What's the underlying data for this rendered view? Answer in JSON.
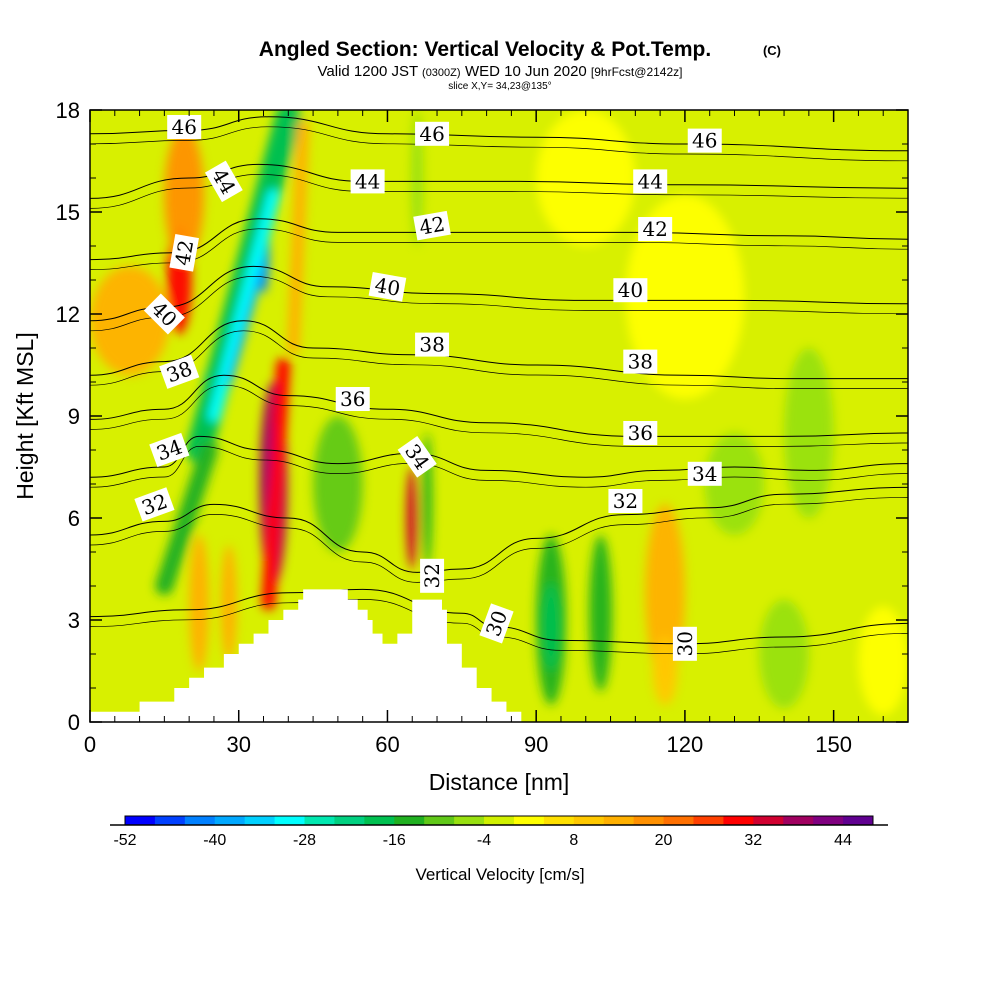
{
  "chart_data": {
    "type": "heatmap",
    "title": "Angled Section: Vertical Velocity & Pot.Temp.",
    "title_mark": "(C)",
    "subtitle_parts": [
      "Valid 1200 JST ",
      "(0300Z)",
      " WED 10 Jun 2020 ",
      "[9hrFcst@2142z]"
    ],
    "subtitle2": "slice X,Y= 34,23@135°",
    "xlabel": "Distance [nm]",
    "ylabel": "Height [Kft MSL]",
    "xlim": [
      0,
      165
    ],
    "ylim": [
      0,
      18
    ],
    "x_ticks": [
      0,
      30,
      60,
      90,
      120,
      150
    ],
    "y_ticks": [
      0,
      3,
      6,
      9,
      12,
      15,
      18
    ],
    "colorbar": {
      "title": "Vertical Velocity [cm/s]",
      "tick_values": [
        "-52",
        "-40",
        "-28",
        "-16",
        "-4",
        "8",
        "20",
        "32",
        "44"
      ],
      "colors": [
        "#0000ff",
        "#0040ff",
        "#0080ff",
        "#00a8ff",
        "#00d0ff",
        "#00ffff",
        "#00e8b0",
        "#00d080",
        "#00c050",
        "#20b020",
        "#60c818",
        "#98e010",
        "#d0f000",
        "#ffff00",
        "#ffe000",
        "#ffc800",
        "#ffb000",
        "#ff9000",
        "#ff7000",
        "#ff4000",
        "#ff0000",
        "#d00030",
        "#a00060",
        "#800080",
        "#600090"
      ]
    },
    "terrain_profile": [
      [
        0,
        0.3
      ],
      [
        10,
        0.3
      ],
      [
        10,
        0.6
      ],
      [
        17,
        0.6
      ],
      [
        17,
        1.0
      ],
      [
        20,
        1.0
      ],
      [
        20,
        1.3
      ],
      [
        23,
        1.3
      ],
      [
        23,
        1.6
      ],
      [
        27,
        1.6
      ],
      [
        27,
        2.0
      ],
      [
        30,
        2.0
      ],
      [
        30,
        2.3
      ],
      [
        33,
        2.3
      ],
      [
        33,
        2.6
      ],
      [
        36,
        2.6
      ],
      [
        36,
        3.0
      ],
      [
        39,
        3.0
      ],
      [
        39,
        3.3
      ],
      [
        42,
        3.3
      ],
      [
        42,
        3.6
      ],
      [
        43,
        3.6
      ],
      [
        43,
        3.9
      ],
      [
        52,
        3.9
      ],
      [
        52,
        3.6
      ],
      [
        54,
        3.6
      ],
      [
        54,
        3.3
      ],
      [
        56,
        3.3
      ],
      [
        56,
        3.0
      ],
      [
        57,
        3.0
      ],
      [
        57,
        2.6
      ],
      [
        59,
        2.6
      ],
      [
        59,
        2.3
      ],
      [
        62,
        2.3
      ],
      [
        62,
        2.6
      ],
      [
        65,
        2.6
      ],
      [
        65,
        3.6
      ],
      [
        71,
        3.6
      ],
      [
        71,
        3.3
      ],
      [
        72,
        3.3
      ],
      [
        72,
        2.3
      ],
      [
        75,
        2.3
      ],
      [
        75,
        1.6
      ],
      [
        78,
        1.6
      ],
      [
        78,
        1.0
      ],
      [
        81,
        1.0
      ],
      [
        81,
        0.6
      ],
      [
        84,
        0.6
      ],
      [
        84,
        0.3
      ],
      [
        87,
        0.3
      ],
      [
        87,
        0
      ],
      [
        0,
        0
      ]
    ],
    "vv_features": [
      {
        "x": 18,
        "y": 13.0,
        "rx": 2.5,
        "ry": 1.6,
        "value": 30
      },
      {
        "x": 19,
        "y": 15.5,
        "rx": 4,
        "ry": 2.0,
        "value": 16
      },
      {
        "x": 8,
        "y": 11.8,
        "rx": 8,
        "ry": 1.6,
        "value": 14
      },
      {
        "x": 35,
        "y": 13.8,
        "rx": 1.2,
        "ry": 1.2,
        "value": -44
      },
      {
        "x": 24,
        "y": 9.5,
        "rx": 1.3,
        "ry": 0.9,
        "value": -30
      },
      {
        "x": 37,
        "y": 7.0,
        "rx": 2.8,
        "ry": 3.0,
        "value": 36
      },
      {
        "x": 37,
        "y": 6.5,
        "rx": 1.3,
        "ry": 2.3,
        "value": 48
      },
      {
        "x": 22,
        "y": 3.5,
        "rx": 2.0,
        "ry": 2.0,
        "value": 14
      },
      {
        "x": 28,
        "y": 3.5,
        "rx": 1.6,
        "ry": 1.7,
        "value": 12
      },
      {
        "x": 65,
        "y": 6.0,
        "rx": 1.2,
        "ry": 1.5,
        "value": 32
      },
      {
        "x": 68,
        "y": 6.5,
        "rx": 1.0,
        "ry": 2.0,
        "value": -16
      },
      {
        "x": 50,
        "y": 7.0,
        "rx": 5.0,
        "ry": 2.0,
        "value": -10
      },
      {
        "x": 93,
        "y": 3.0,
        "rx": 3.0,
        "ry": 2.5,
        "value": -16
      },
      {
        "x": 93,
        "y": 2.8,
        "rx": 1.8,
        "ry": 1.3,
        "value": -20
      },
      {
        "x": 103,
        "y": 3.2,
        "rx": 2.3,
        "ry": 2.3,
        "value": -14
      },
      {
        "x": 116,
        "y": 3.8,
        "rx": 4.0,
        "ry": 2.6,
        "value": 14
      },
      {
        "x": 116,
        "y": 1.5,
        "rx": 2.5,
        "ry": 1.0,
        "value": 10
      },
      {
        "x": 130,
        "y": 7.0,
        "rx": 6.0,
        "ry": 1.5,
        "value": -6
      },
      {
        "x": 145,
        "y": 8.5,
        "rx": 5.0,
        "ry": 2.5,
        "value": -6
      },
      {
        "x": 140,
        "y": 2.0,
        "rx": 5.0,
        "ry": 1.6,
        "value": -8
      },
      {
        "x": 160,
        "y": 1.8,
        "rx": 5.0,
        "ry": 1.6,
        "value": 2
      },
      {
        "x": 120,
        "y": 12.5,
        "rx": 12,
        "ry": 3.0,
        "value": 3
      },
      {
        "x": 100,
        "y": 16.0,
        "rx": 10,
        "ry": 2.0,
        "value": 3
      },
      {
        "x": 66,
        "y": 16.0,
        "rx": 1.2,
        "ry": 2.0,
        "value": -8
      }
    ],
    "potential_temperature_isolines": [
      {
        "value": 30,
        "points": [
          [
            0,
            3.1
          ],
          [
            20,
            3.3
          ],
          [
            40,
            3.8
          ],
          [
            55,
            3.9
          ],
          [
            75,
            3.2
          ],
          [
            82,
            2.8
          ],
          [
            95,
            2.4
          ],
          [
            120,
            2.3
          ],
          [
            140,
            2.5
          ],
          [
            165,
            2.9
          ]
        ]
      },
      {
        "value": 32,
        "points": [
          [
            0,
            5.5
          ],
          [
            15,
            5.9
          ],
          [
            25,
            6.4
          ],
          [
            40,
            6.0
          ],
          [
            55,
            5.0
          ],
          [
            66,
            4.4
          ],
          [
            75,
            4.5
          ],
          [
            90,
            5.4
          ],
          [
            108,
            6.1
          ],
          [
            125,
            6.3
          ],
          [
            140,
            6.7
          ],
          [
            165,
            6.9
          ]
        ]
      },
      {
        "value": 34,
        "points": [
          [
            0,
            7.2
          ],
          [
            15,
            7.5
          ],
          [
            22,
            8.4
          ],
          [
            35,
            8.0
          ],
          [
            50,
            7.6
          ],
          [
            65,
            7.9
          ],
          [
            80,
            7.4
          ],
          [
            100,
            7.2
          ],
          [
            115,
            7.4
          ],
          [
            130,
            7.5
          ],
          [
            145,
            7.4
          ],
          [
            165,
            7.6
          ]
        ]
      },
      {
        "value": 36,
        "points": [
          [
            0,
            8.9
          ],
          [
            15,
            9.2
          ],
          [
            27,
            10.2
          ],
          [
            40,
            9.6
          ],
          [
            60,
            9.2
          ],
          [
            80,
            8.8
          ],
          [
            110,
            8.4
          ],
          [
            140,
            8.4
          ],
          [
            165,
            8.5
          ]
        ]
      },
      {
        "value": 38,
        "points": [
          [
            0,
            10.2
          ],
          [
            15,
            10.6
          ],
          [
            31,
            11.8
          ],
          [
            45,
            11.0
          ],
          [
            65,
            10.8
          ],
          [
            90,
            10.5
          ],
          [
            120,
            10.2
          ],
          [
            140,
            10.1
          ],
          [
            165,
            10.1
          ]
        ]
      },
      {
        "value": 40,
        "points": [
          [
            0,
            11.8
          ],
          [
            15,
            12.2
          ],
          [
            33,
            13.4
          ],
          [
            48,
            12.8
          ],
          [
            70,
            12.6
          ],
          [
            100,
            12.4
          ],
          [
            130,
            12.4
          ],
          [
            165,
            12.3
          ]
        ]
      },
      {
        "value": 42,
        "points": [
          [
            0,
            13.6
          ],
          [
            17,
            13.8
          ],
          [
            34,
            14.8
          ],
          [
            50,
            14.4
          ],
          [
            75,
            14.4
          ],
          [
            110,
            14.4
          ],
          [
            140,
            14.3
          ],
          [
            165,
            14.2
          ]
        ]
      },
      {
        "value": 44,
        "points": [
          [
            0,
            15.4
          ],
          [
            20,
            16.0
          ],
          [
            34,
            16.4
          ],
          [
            55,
            15.9
          ],
          [
            85,
            15.9
          ],
          [
            120,
            15.8
          ],
          [
            165,
            15.7
          ]
        ]
      },
      {
        "value": 46,
        "points": [
          [
            0,
            17.3
          ],
          [
            20,
            17.4
          ],
          [
            36,
            17.8
          ],
          [
            60,
            17.3
          ],
          [
            90,
            17.2
          ],
          [
            120,
            17.0
          ],
          [
            165,
            16.8
          ]
        ]
      }
    ],
    "potential_temperature_labels": [
      {
        "text": "46",
        "x": 19,
        "y": 17.5,
        "angle": 0
      },
      {
        "text": "44",
        "x": 27,
        "y": 15.9,
        "angle": 60
      },
      {
        "text": "42",
        "x": 19,
        "y": 13.8,
        "angle": -80
      },
      {
        "text": "40",
        "x": 15,
        "y": 12.0,
        "angle": 45
      },
      {
        "text": "38",
        "x": 18,
        "y": 10.3,
        "angle": -20
      },
      {
        "text": "34",
        "x": 16,
        "y": 8.0,
        "angle": -20
      },
      {
        "text": "32",
        "x": 13,
        "y": 6.4,
        "angle": -20
      },
      {
        "text": "44",
        "x": 56,
        "y": 15.9,
        "angle": 0
      },
      {
        "text": "46",
        "x": 69,
        "y": 17.3,
        "angle": 0
      },
      {
        "text": "42",
        "x": 69,
        "y": 14.6,
        "angle": -10
      },
      {
        "text": "40",
        "x": 60,
        "y": 12.8,
        "angle": 10
      },
      {
        "text": "38",
        "x": 69,
        "y": 11.1,
        "angle": 0
      },
      {
        "text": "36",
        "x": 53,
        "y": 9.5,
        "angle": 0
      },
      {
        "text": "34",
        "x": 66,
        "y": 7.8,
        "angle": 55
      },
      {
        "text": "32",
        "x": 69,
        "y": 4.3,
        "angle": -90
      },
      {
        "text": "30",
        "x": 82,
        "y": 2.9,
        "angle": -70
      },
      {
        "text": "46",
        "x": 124,
        "y": 17.1,
        "angle": 0
      },
      {
        "text": "44",
        "x": 113,
        "y": 15.9,
        "angle": 0
      },
      {
        "text": "42",
        "x": 114,
        "y": 14.5,
        "angle": 0
      },
      {
        "text": "40",
        "x": 109,
        "y": 12.7,
        "angle": 0
      },
      {
        "text": "38",
        "x": 111,
        "y": 10.6,
        "angle": 0
      },
      {
        "text": "36",
        "x": 111,
        "y": 8.5,
        "angle": 0
      },
      {
        "text": "34",
        "x": 124,
        "y": 7.3,
        "angle": 0
      },
      {
        "text": "32",
        "x": 108,
        "y": 6.5,
        "angle": 0
      },
      {
        "text": "30",
        "x": 120,
        "y": 2.3,
        "angle": -90
      }
    ]
  }
}
